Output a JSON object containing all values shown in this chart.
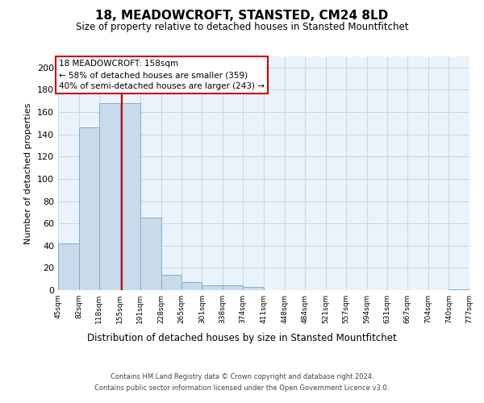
{
  "title": "18, MEADOWCROFT, STANSTED, CM24 8LD",
  "subtitle": "Size of property relative to detached houses in Stansted Mountfitchet",
  "xlabel": "Distribution of detached houses by size in Stansted Mountfitchet",
  "ylabel": "Number of detached properties",
  "bar_edges": [
    45,
    82,
    118,
    155,
    191,
    228,
    265,
    301,
    338,
    374,
    411,
    448,
    484,
    521,
    557,
    594,
    631,
    667,
    704,
    740,
    777
  ],
  "bar_heights": [
    42,
    146,
    168,
    168,
    65,
    14,
    7,
    4,
    4,
    3,
    0,
    0,
    0,
    0,
    0,
    0,
    0,
    0,
    0,
    1
  ],
  "bar_color": "#c9daea",
  "bar_edge_color": "#7bafd4",
  "grid_color": "#c8d8e8",
  "bg_color": "#eaf3fb",
  "property_value": 158,
  "vline_color": "#cc0000",
  "annotation_title": "18 MEADOWCROFT: 158sqm",
  "annotation_line1": "← 58% of detached houses are smaller (359)",
  "annotation_line2": "40% of semi-detached houses are larger (243) →",
  "annotation_box_color": "#cc0000",
  "footer_line1": "Contains HM Land Registry data © Crown copyright and database right 2024.",
  "footer_line2": "Contains public sector information licensed under the Open Government Licence v3.0.",
  "ylim": [
    0,
    210
  ],
  "yticks": [
    0,
    20,
    40,
    60,
    80,
    100,
    120,
    140,
    160,
    180,
    200
  ],
  "tick_labels": [
    "45sqm",
    "82sqm",
    "118sqm",
    "155sqm",
    "191sqm",
    "228sqm",
    "265sqm",
    "301sqm",
    "338sqm",
    "374sqm",
    "411sqm",
    "448sqm",
    "484sqm",
    "521sqm",
    "557sqm",
    "594sqm",
    "631sqm",
    "667sqm",
    "704sqm",
    "740sqm",
    "777sqm"
  ]
}
